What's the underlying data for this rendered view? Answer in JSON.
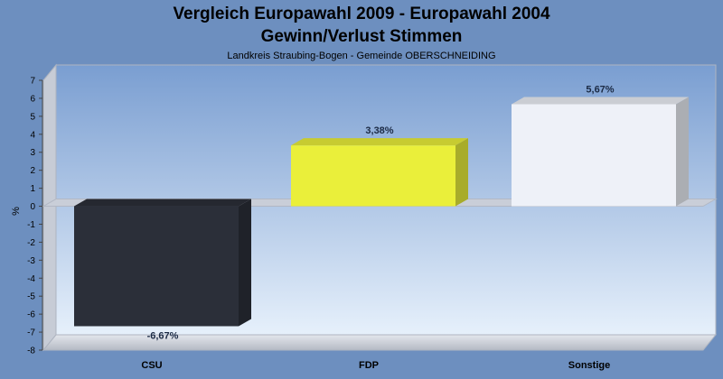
{
  "title_line1": "Vergleich Europawahl 2009 - Europawahl 2004",
  "title_line2": "Gewinn/Verlust Stimmen",
  "subtitle": "Landkreis Straubing-Bogen - Gemeinde OBERSCHNEIDING",
  "chart_data": {
    "type": "bar",
    "title": "Vergleich Europawahl 2009 - Europawahl 2004 / Gewinn/Verlust Stimmen",
    "subtitle": "Landkreis Straubing-Bogen - Gemeinde OBERSCHNEIDING",
    "categories": [
      "CSU",
      "FDP",
      "Sonstige"
    ],
    "values": [
      -6.67,
      3.38,
      5.67
    ],
    "data_labels": [
      "-6,67%",
      "3,38%",
      "5,67%"
    ],
    "bar_colors": [
      "#2b2f39",
      "#eaef3a",
      "#eef1f8"
    ],
    "xlabel": "",
    "ylabel": "%",
    "ylim": [
      -8,
      7
    ],
    "yticks": [
      -8,
      -7,
      -6,
      -5,
      -4,
      -3,
      -2,
      -1,
      0,
      1,
      2,
      3,
      4,
      5,
      6,
      7
    ],
    "grid": false,
    "legend": "none"
  },
  "colors": {
    "background": "#6d8fbf",
    "plot_top": "#7a9ed1",
    "plot_bottom": "#e6f0fb"
  }
}
